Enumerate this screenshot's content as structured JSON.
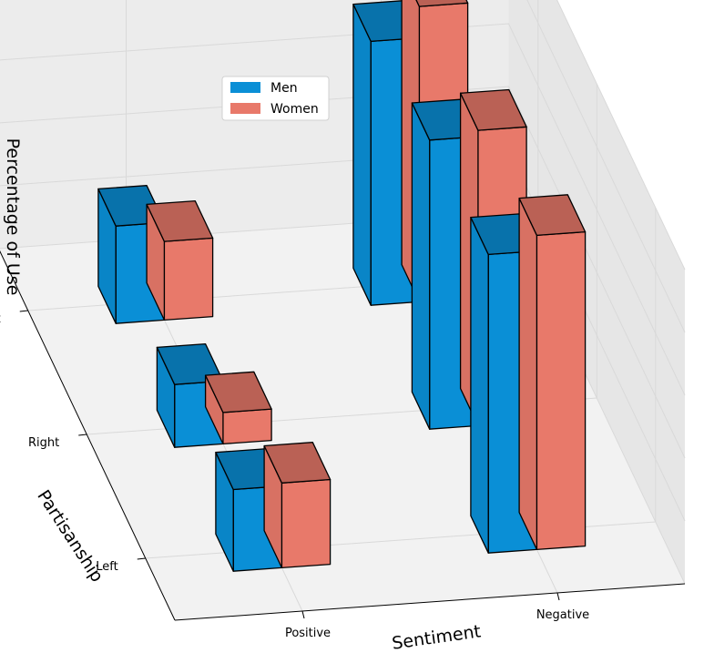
{
  "chart_data": {
    "type": "bar3d",
    "title": "",
    "xlabel": "Sentiment",
    "ylabel": "Partisanship",
    "zlabel": "Percentage of Use",
    "x_categories": [
      "Positive",
      "Negative"
    ],
    "y_categories": [
      "Left",
      "Right",
      "Alt right"
    ],
    "zlim": [
      0.0,
      1.0
    ],
    "z_ticks": [
      "0.0",
      "0.2",
      "0.4",
      "0.6",
      "0.8",
      "1.0"
    ],
    "grid": true,
    "legend_position": "top-left",
    "series": [
      {
        "name": "Men",
        "color": "#0a8fd6",
        "values": {
          "Positive": {
            "Left": 0.26,
            "Right": 0.2,
            "Alt right": 0.31
          },
          "Negative": {
            "Left": 0.95,
            "Right": 0.92,
            "Alt right": 0.84
          }
        }
      },
      {
        "name": "Women",
        "color": "#e8796a",
        "values": {
          "Positive": {
            "Left": 0.27,
            "Right": 0.1,
            "Alt right": 0.25
          },
          "Negative": {
            "Left": 1.0,
            "Right": 0.94,
            "Alt right": 0.94
          }
        }
      }
    ]
  }
}
